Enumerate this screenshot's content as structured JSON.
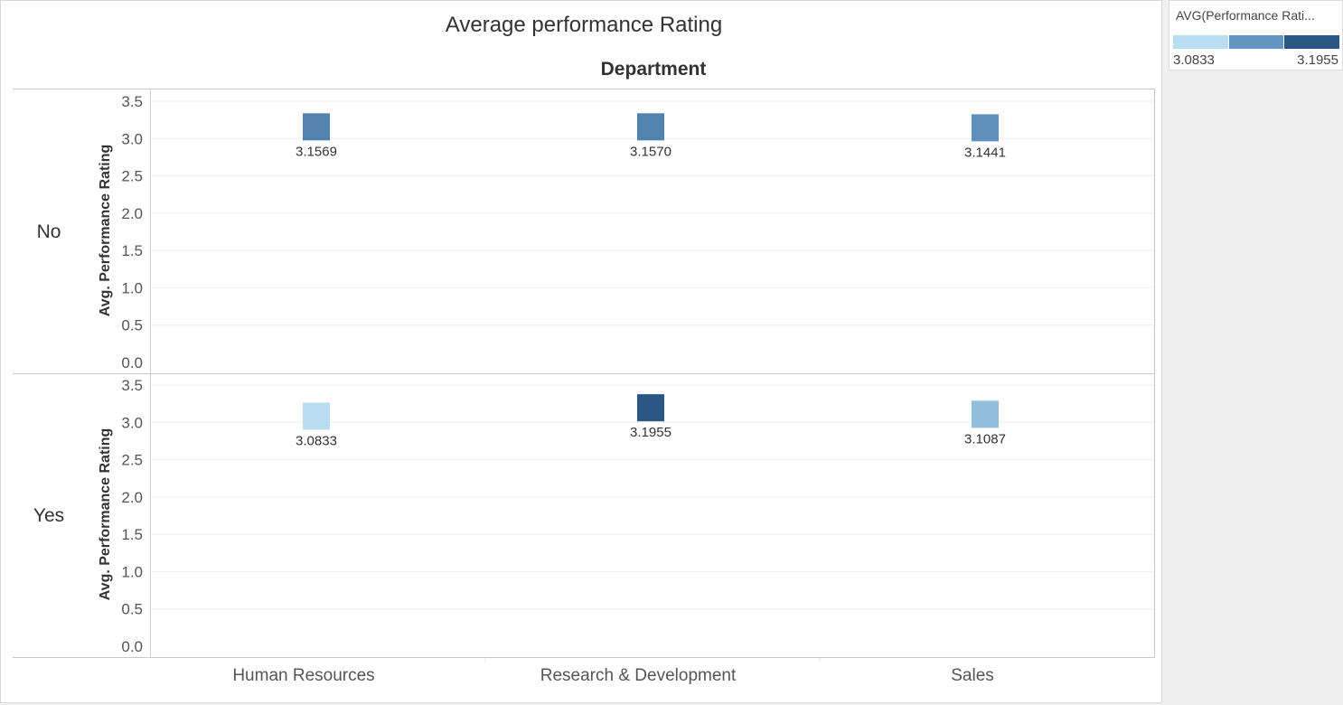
{
  "chart_data": {
    "type": "heatmap",
    "title": "Average performance Rating",
    "column_header": "Department",
    "row_dimension_values": [
      "No",
      "Yes"
    ],
    "categories": [
      "Human Resources",
      "Research & Development",
      "Sales"
    ],
    "ylabel": "Avg. Performance Rating",
    "ylim": [
      0,
      3.5
    ],
    "yticks": [
      "0.0",
      "0.5",
      "1.0",
      "1.5",
      "2.0",
      "2.5",
      "3.0",
      "3.5"
    ],
    "series": [
      {
        "name": "No",
        "values": [
          3.1569,
          3.157,
          3.1441
        ],
        "labels": [
          "3.1569",
          "3.1570",
          "3.1441"
        ]
      },
      {
        "name": "Yes",
        "values": [
          3.0833,
          3.1955,
          3.1087
        ],
        "labels": [
          "3.0833",
          "3.1955",
          "3.1087"
        ]
      }
    ],
    "mark": "square",
    "grid": true,
    "legend": {
      "title": "AVG(Performance Rati...",
      "min_label": "3.0833",
      "max_label": "3.1955",
      "min": 3.0833,
      "max": 3.1955,
      "placement": "top-right",
      "colors": [
        "#b9ddf1",
        "#6596c2",
        "#2a5783"
      ]
    }
  }
}
